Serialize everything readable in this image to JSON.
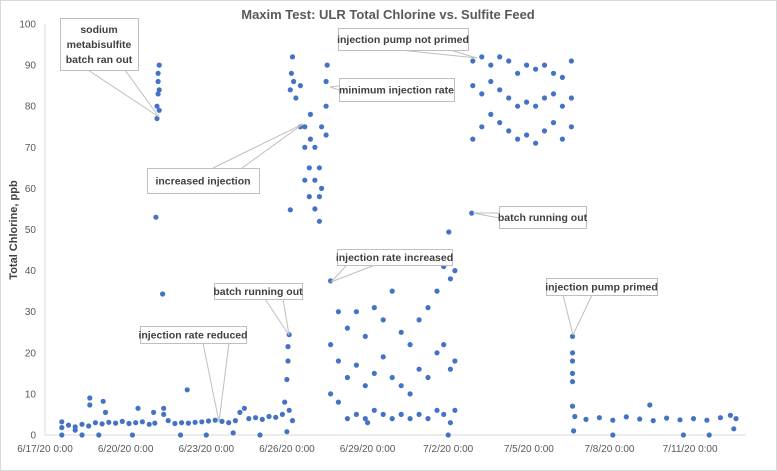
{
  "chart_data": {
    "type": "scatter",
    "title": "Maxim Test: ULR Total Chlorine vs. Sulfite Feed",
    "xlabel": "",
    "ylabel": "Total Chlorine, ppb",
    "ylim": [
      0,
      100
    ],
    "yticks": [
      "0",
      "10",
      "20",
      "30",
      "40",
      "50",
      "60",
      "70",
      "80",
      "90",
      "100"
    ],
    "xlim": [
      "6/17/20 0:00",
      "7/13/20 0:00"
    ],
    "xticks": [
      "6/17/20 0:00",
      "6/20/20 0:00",
      "6/23/20 0:00",
      "6/26/20 0:00",
      "6/29/20 0:00",
      "7/2/20 0:00",
      "7/5/20 0:00",
      "7/8/20 0:00",
      "7/11/20 0:00"
    ],
    "grid": false,
    "legend": "none",
    "color": "#4472C4",
    "points": [
      [
        "6/17/20 15:00",
        3.2
      ],
      [
        "6/17/20 15:00",
        1.8
      ],
      [
        "6/17/20 15:00",
        0
      ],
      [
        "6/17/20 21:00",
        2.4
      ],
      [
        "6/18/20 3:00",
        2.0
      ],
      [
        "6/18/20 3:00",
        1.2
      ],
      [
        "6/18/20 9:00",
        2.6
      ],
      [
        "6/18/20 9:00",
        0
      ],
      [
        "6/18/20 15:00",
        2.2
      ],
      [
        "6/18/20 16:00",
        9.0
      ],
      [
        "6/18/20 16:00",
        7.3
      ],
      [
        "6/18/20 21:00",
        3.0
      ],
      [
        "6/19/20 0:00",
        0
      ],
      [
        "6/19/20 3:00",
        2.7
      ],
      [
        "6/19/20 4:00",
        8.2
      ],
      [
        "6/19/20 6:00",
        5.5
      ],
      [
        "6/19/20 9:00",
        3.1
      ],
      [
        "6/19/20 15:00",
        2.9
      ],
      [
        "6/19/20 21:00",
        3.3
      ],
      [
        "6/20/20 3:00",
        2.8
      ],
      [
        "6/20/20 6:00",
        0
      ],
      [
        "6/20/20 9:00",
        3.0
      ],
      [
        "6/20/20 11:00",
        6.5
      ],
      [
        "6/20/20 15:00",
        3.2
      ],
      [
        "6/20/20 21:00",
        2.6
      ],
      [
        "6/21/20 1:00",
        5.5
      ],
      [
        "6/21/20 2:00",
        2.9
      ],
      [
        "6/21/20 3:00",
        53
      ],
      [
        "6/21/20 4:00",
        77
      ],
      [
        "6/21/20 4:00",
        80
      ],
      [
        "6/21/20 5:00",
        83
      ],
      [
        "6/21/20 5:00",
        86
      ],
      [
        "6/21/20 5:00",
        88
      ],
      [
        "6/21/20 6:00",
        90
      ],
      [
        "6/21/20 6:00",
        84
      ],
      [
        "6/21/20 6:00",
        79
      ],
      [
        "6/21/20 9:00",
        34.3
      ],
      [
        "6/21/20 10:00",
        6.5
      ],
      [
        "6/21/20 10:00",
        5.0
      ],
      [
        "6/21/20 14:00",
        3.5
      ],
      [
        "6/21/20 20:00",
        2.8
      ],
      [
        "6/22/20 1:00",
        0
      ],
      [
        "6/22/20 2:00",
        3.0
      ],
      [
        "6/22/20 7:00",
        11.0
      ],
      [
        "6/22/20 8:00",
        2.9
      ],
      [
        "6/22/20 14:00",
        3.1
      ],
      [
        "6/22/20 20:00",
        3.2
      ],
      [
        "6/23/20 0:00",
        0
      ],
      [
        "6/23/20 2:00",
        3.4
      ],
      [
        "6/23/20 8:00",
        3.6
      ],
      [
        "6/23/20 14:00",
        3.3
      ],
      [
        "6/23/20 20:00",
        3.0
      ],
      [
        "6/24/20 0:00",
        0.5
      ],
      [
        "6/24/20 2:00",
        3.5
      ],
      [
        "6/24/20 6:00",
        5.5
      ],
      [
        "6/24/20 10:00",
        6.5
      ],
      [
        "6/24/20 14:00",
        4.0
      ],
      [
        "6/24/20 20:00",
        4.2
      ],
      [
        "6/25/20 0:00",
        0
      ],
      [
        "6/25/20 2:00",
        3.8
      ],
      [
        "6/25/20 8:00",
        4.5
      ],
      [
        "6/25/20 14:00",
        4.3
      ],
      [
        "6/25/20 20:00",
        5.0
      ],
      [
        "6/25/20 22:00",
        8.0
      ],
      [
        "6/26/20 0:00",
        13.5
      ],
      [
        "6/26/20 0:00",
        0.8
      ],
      [
        "6/26/20 1:00",
        18
      ],
      [
        "6/26/20 1:00",
        21.5
      ],
      [
        "6/26/20 2:00",
        24.4
      ],
      [
        "6/26/20 2:00",
        6.0
      ],
      [
        "6/26/20 5:00",
        3.5
      ],
      [
        "6/26/20 3:00",
        54.8
      ],
      [
        "6/26/20 3:00",
        84
      ],
      [
        "6/26/20 4:00",
        88
      ],
      [
        "6/26/20 5:00",
        92
      ],
      [
        "6/26/20 6:00",
        86
      ],
      [
        "6/26/20 8:00",
        82
      ],
      [
        "6/26/20 12:00",
        75
      ],
      [
        "6/26/20 12:00",
        85
      ],
      [
        "6/26/20 16:00",
        62
      ],
      [
        "6/26/20 16:00",
        70
      ],
      [
        "6/26/20 16:00",
        75
      ],
      [
        "6/26/20 20:00",
        58
      ],
      [
        "6/26/20 20:00",
        65
      ],
      [
        "6/26/20 21:00",
        72
      ],
      [
        "6/26/20 21:00",
        78
      ],
      [
        "6/27/20 1:00",
        55
      ],
      [
        "6/27/20 1:00",
        62
      ],
      [
        "6/27/20 1:00",
        70
      ],
      [
        "6/27/20 5:00",
        52
      ],
      [
        "6/27/20 5:00",
        58
      ],
      [
        "6/27/20 5:00",
        65
      ],
      [
        "6/27/20 7:00",
        60
      ],
      [
        "6/27/20 7:00",
        75
      ],
      [
        "6/27/20 11:00",
        73
      ],
      [
        "6/27/20 11:00",
        80
      ],
      [
        "6/27/20 11:00",
        86
      ],
      [
        "6/27/20 12:00",
        90
      ],
      [
        "6/27/20 15:00",
        10
      ],
      [
        "6/27/20 15:00",
        22
      ],
      [
        "6/27/20 15:00",
        37.5
      ],
      [
        "6/27/20 22:00",
        8
      ],
      [
        "6/27/20 22:00",
        18
      ],
      [
        "6/27/20 22:00",
        30
      ],
      [
        "6/28/20 6:00",
        4
      ],
      [
        "6/28/20 6:00",
        14
      ],
      [
        "6/28/20 6:00",
        26
      ],
      [
        "6/28/20 14:00",
        5
      ],
      [
        "6/28/20 14:00",
        17
      ],
      [
        "6/28/20 14:00",
        30
      ],
      [
        "6/28/20 22:00",
        4
      ],
      [
        "6/28/20 22:00",
        12
      ],
      [
        "6/28/20 22:00",
        24
      ],
      [
        "6/29/20 0:00",
        3
      ],
      [
        "6/29/20 6:00",
        6
      ],
      [
        "6/29/20 6:00",
        15
      ],
      [
        "6/29/20 6:00",
        31
      ],
      [
        "6/29/20 14:00",
        5
      ],
      [
        "6/29/20 14:00",
        19
      ],
      [
        "6/29/20 14:00",
        28
      ],
      [
        "6/29/20 22:00",
        4
      ],
      [
        "6/29/20 22:00",
        14
      ],
      [
        "6/29/20 22:00",
        35
      ],
      [
        "6/30/20 6:00",
        5
      ],
      [
        "6/30/20 6:00",
        12
      ],
      [
        "6/30/20 6:00",
        25
      ],
      [
        "6/30/20 14:00",
        4
      ],
      [
        "6/30/20 14:00",
        10
      ],
      [
        "6/30/20 14:00",
        22
      ],
      [
        "6/30/20 22:00",
        5
      ],
      [
        "6/30/20 22:00",
        16
      ],
      [
        "6/30/20 22:00",
        28
      ],
      [
        "7/1/20 6:00",
        4
      ],
      [
        "7/1/20 6:00",
        14
      ],
      [
        "7/1/20 6:00",
        31
      ],
      [
        "7/1/20 14:00",
        6
      ],
      [
        "7/1/20 14:00",
        20
      ],
      [
        "7/1/20 14:00",
        35
      ],
      [
        "7/1/20 20:00",
        5
      ],
      [
        "7/1/20 20:00",
        22
      ],
      [
        "7/1/20 20:00",
        41
      ],
      [
        "7/2/20 0:00",
        0
      ],
      [
        "7/2/20 0:30",
        49.4
      ],
      [
        "7/2/20 2:00",
        3
      ],
      [
        "7/2/20 2:00",
        16
      ],
      [
        "7/2/20 2:00",
        38
      ],
      [
        "7/2/20 6:00",
        6
      ],
      [
        "7/2/20 6:00",
        18
      ],
      [
        "7/2/20 6:00",
        40
      ],
      [
        "7/2/20 21:00",
        54
      ],
      [
        "7/2/20 22:00",
        72
      ],
      [
        "7/2/20 22:00",
        85
      ],
      [
        "7/2/20 22:00",
        91
      ],
      [
        "7/3/20 6:00",
        75
      ],
      [
        "7/3/20 6:00",
        83
      ],
      [
        "7/3/20 6:00",
        92
      ],
      [
        "7/3/20 14:00",
        78
      ],
      [
        "7/3/20 14:00",
        86
      ],
      [
        "7/3/20 14:00",
        90
      ],
      [
        "7/3/20 22:00",
        76
      ],
      [
        "7/3/20 22:00",
        84
      ],
      [
        "7/3/20 22:00",
        92
      ],
      [
        "7/4/20 6:00",
        74
      ],
      [
        "7/4/20 6:00",
        82
      ],
      [
        "7/4/20 6:00",
        91
      ],
      [
        "7/4/20 14:00",
        72
      ],
      [
        "7/4/20 14:00",
        80
      ],
      [
        "7/4/20 14:00",
        88
      ],
      [
        "7/4/20 22:00",
        73
      ],
      [
        "7/4/20 22:00",
        81
      ],
      [
        "7/4/20 22:00",
        90
      ],
      [
        "7/5/20 6:00",
        71
      ],
      [
        "7/5/20 6:00",
        80
      ],
      [
        "7/5/20 6:00",
        89
      ],
      [
        "7/5/20 14:00",
        74
      ],
      [
        "7/5/20 14:00",
        82
      ],
      [
        "7/5/20 14:00",
        90
      ],
      [
        "7/5/20 22:00",
        76
      ],
      [
        "7/5/20 22:00",
        83
      ],
      [
        "7/5/20 22:00",
        88
      ],
      [
        "7/6/20 6:00",
        72
      ],
      [
        "7/6/20 6:00",
        80
      ],
      [
        "7/6/20 6:00",
        87
      ],
      [
        "7/6/20 14:00",
        75
      ],
      [
        "7/6/20 14:00",
        82
      ],
      [
        "7/6/20 14:00",
        91
      ],
      [
        "7/6/20 15:00",
        24
      ],
      [
        "7/6/20 15:00",
        20
      ],
      [
        "7/6/20 15:00",
        18
      ],
      [
        "7/6/20 15:00",
        15
      ],
      [
        "7/6/20 15:00",
        13
      ],
      [
        "7/6/20 15:00",
        7
      ],
      [
        "7/6/20 16:00",
        1
      ],
      [
        "7/6/20 17:00",
        4.5
      ],
      [
        "7/7/20 3:00",
        3.8
      ],
      [
        "7/7/20 15:00",
        4.2
      ],
      [
        "7/8/20 3:00",
        0
      ],
      [
        "7/8/20 3:00",
        3.6
      ],
      [
        "7/8/20 15:00",
        4.4
      ],
      [
        "7/9/20 3:00",
        3.9
      ],
      [
        "7/9/20 12:00",
        7.3
      ],
      [
        "7/9/20 15:00",
        3.5
      ],
      [
        "7/10/20 3:00",
        4.1
      ],
      [
        "7/10/20 15:00",
        3.7
      ],
      [
        "7/10/20 18:00",
        0
      ],
      [
        "7/11/20 3:00",
        4.0
      ],
      [
        "7/11/20 15:00",
        3.6
      ],
      [
        "7/11/20 17:00",
        0
      ],
      [
        "7/12/20 3:00",
        4.2
      ],
      [
        "7/12/20 12:00",
        4.8
      ],
      [
        "7/12/20 15:00",
        1.5
      ],
      [
        "7/12/20 17:00",
        4.0
      ]
    ],
    "annotations": [
      {
        "lines": [
          "sodium",
          "metabisulfite",
          "batch ran out"
        ]
      },
      {
        "lines": [
          "increased injection"
        ]
      },
      {
        "lines": [
          "minimum injection rate"
        ]
      },
      {
        "lines": [
          "injection pump not primed"
        ]
      },
      {
        "lines": [
          "batch running out"
        ]
      },
      {
        "lines": [
          "injection rate reduced"
        ]
      },
      {
        "lines": [
          "batch running out"
        ]
      },
      {
        "lines": [
          "injection rate increased"
        ]
      },
      {
        "lines": [
          "injection pump primed"
        ]
      }
    ]
  }
}
